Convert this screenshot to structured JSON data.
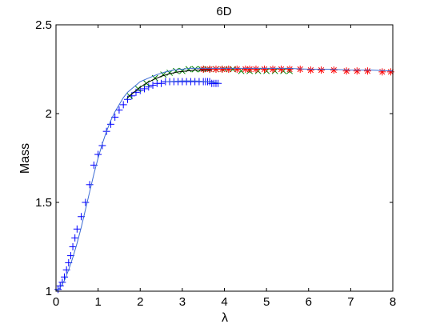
{
  "chart_data": {
    "type": "scatter",
    "title": "6D",
    "xlabel": "λ",
    "ylabel": "Mass",
    "xlim": [
      0,
      8
    ],
    "ylim": [
      1,
      2.5
    ],
    "xticks": [
      0,
      1,
      2,
      3,
      4,
      5,
      6,
      7,
      8
    ],
    "yticks": [
      1,
      1.5,
      2,
      2.5
    ],
    "xtick_labels": [
      "0",
      "1",
      "2",
      "3",
      "4",
      "5",
      "6",
      "7",
      "8"
    ],
    "ytick_labels": [
      "1",
      "1.5",
      "2",
      "2.5"
    ],
    "grid": false,
    "legend": "none",
    "colors": {
      "plus_series": "#0000ff",
      "x_series": "#008000",
      "star_series": "#ff0000",
      "fit_line": "#3b6bd4",
      "dark_line": "#000000"
    },
    "series": [
      {
        "marker": "plus",
        "color": "#0000ff",
        "x": [
          0.05,
          0.1,
          0.15,
          0.2,
          0.25,
          0.3,
          0.35,
          0.4,
          0.45,
          0.5,
          0.6,
          0.7,
          0.8,
          0.9,
          1.0,
          1.1,
          1.2,
          1.3,
          1.4,
          1.5,
          1.6,
          1.7,
          1.8,
          1.9,
          2.0,
          2.1,
          2.2,
          2.3,
          2.4,
          2.5,
          2.6,
          2.7,
          2.8,
          2.9,
          3.0,
          3.1,
          3.2,
          3.3,
          3.4,
          3.5,
          3.55,
          3.6,
          3.65,
          3.7,
          3.75,
          3.8,
          3.85
        ],
        "y": [
          1.01,
          1.03,
          1.05,
          1.08,
          1.12,
          1.16,
          1.2,
          1.25,
          1.3,
          1.35,
          1.42,
          1.5,
          1.6,
          1.71,
          1.77,
          1.82,
          1.9,
          1.94,
          1.98,
          2.02,
          2.05,
          2.08,
          2.1,
          2.12,
          2.13,
          2.14,
          2.15,
          2.16,
          2.17,
          2.17,
          2.18,
          2.18,
          2.18,
          2.18,
          2.18,
          2.18,
          2.18,
          2.18,
          2.18,
          2.18,
          2.18,
          2.18,
          2.18,
          2.17,
          2.17,
          2.17,
          2.17
        ]
      },
      {
        "marker": "x",
        "color": "#008000",
        "x": [
          1.75,
          1.95,
          2.15,
          2.35,
          2.55,
          2.7,
          2.85,
          3.0,
          3.15,
          3.3,
          3.45,
          3.6,
          3.8,
          4.0,
          4.2,
          4.4,
          4.6,
          4.8,
          5.0,
          5.2,
          5.4,
          5.55
        ],
        "y": [
          2.1,
          2.14,
          2.17,
          2.2,
          2.22,
          2.23,
          2.24,
          2.24,
          2.25,
          2.25,
          2.25,
          2.25,
          2.25,
          2.25,
          2.25,
          2.24,
          2.24,
          2.24,
          2.24,
          2.24,
          2.24,
          2.24
        ]
      },
      {
        "marker": "star",
        "color": "#ff0000",
        "x": [
          3.5,
          3.65,
          3.8,
          3.95,
          4.1,
          4.3,
          4.5,
          4.6,
          4.75,
          4.95,
          5.15,
          5.35,
          5.55,
          5.8,
          6.05,
          6.3,
          6.6,
          6.9,
          7.15,
          7.4,
          7.75,
          7.95
        ],
        "y": [
          2.25,
          2.25,
          2.25,
          2.25,
          2.25,
          2.25,
          2.25,
          2.25,
          2.25,
          2.25,
          2.25,
          2.25,
          2.25,
          2.25,
          2.245,
          2.245,
          2.245,
          2.24,
          2.24,
          2.24,
          2.235,
          2.235
        ]
      },
      {
        "marker": "line",
        "color": "#3b6bd4",
        "x": [
          0,
          0.1,
          0.2,
          0.3,
          0.4,
          0.5,
          0.6,
          0.7,
          0.8,
          0.9,
          1.0,
          1.1,
          1.2,
          1.3,
          1.4,
          1.5,
          1.6,
          1.7,
          1.8,
          1.9,
          2.0,
          2.2,
          2.4,
          2.6,
          2.8,
          3.0,
          3.2,
          3.4,
          3.6,
          3.8,
          4.0,
          4.5,
          5.0,
          5.5,
          6.0,
          6.5,
          7.0,
          7.5,
          8.0
        ],
        "y": [
          1.0,
          1.02,
          1.06,
          1.12,
          1.19,
          1.27,
          1.36,
          1.46,
          1.56,
          1.66,
          1.75,
          1.83,
          1.9,
          1.96,
          2.01,
          2.05,
          2.09,
          2.12,
          2.14,
          2.16,
          2.18,
          2.2,
          2.22,
          2.235,
          2.245,
          2.25,
          2.255,
          2.255,
          2.255,
          2.255,
          2.255,
          2.255,
          2.255,
          2.255,
          2.25,
          2.25,
          2.245,
          2.245,
          2.24
        ]
      },
      {
        "marker": "line",
        "color": "#000000",
        "x": [
          1.7,
          1.9,
          2.1,
          2.3,
          2.5,
          2.7,
          2.9,
          3.1,
          3.3,
          3.5,
          3.7
        ],
        "y": [
          2.09,
          2.13,
          2.165,
          2.19,
          2.21,
          2.225,
          2.235,
          2.24,
          2.245,
          2.245,
          2.245
        ]
      },
      {
        "marker": "line",
        "color": "#3b6bd4",
        "x": [
          2.6,
          2.8,
          3.0,
          3.2,
          3.4,
          3.6,
          3.8,
          3.9
        ],
        "y": [
          2.18,
          2.182,
          2.184,
          2.184,
          2.183,
          2.18,
          2.175,
          2.17
        ]
      }
    ]
  }
}
